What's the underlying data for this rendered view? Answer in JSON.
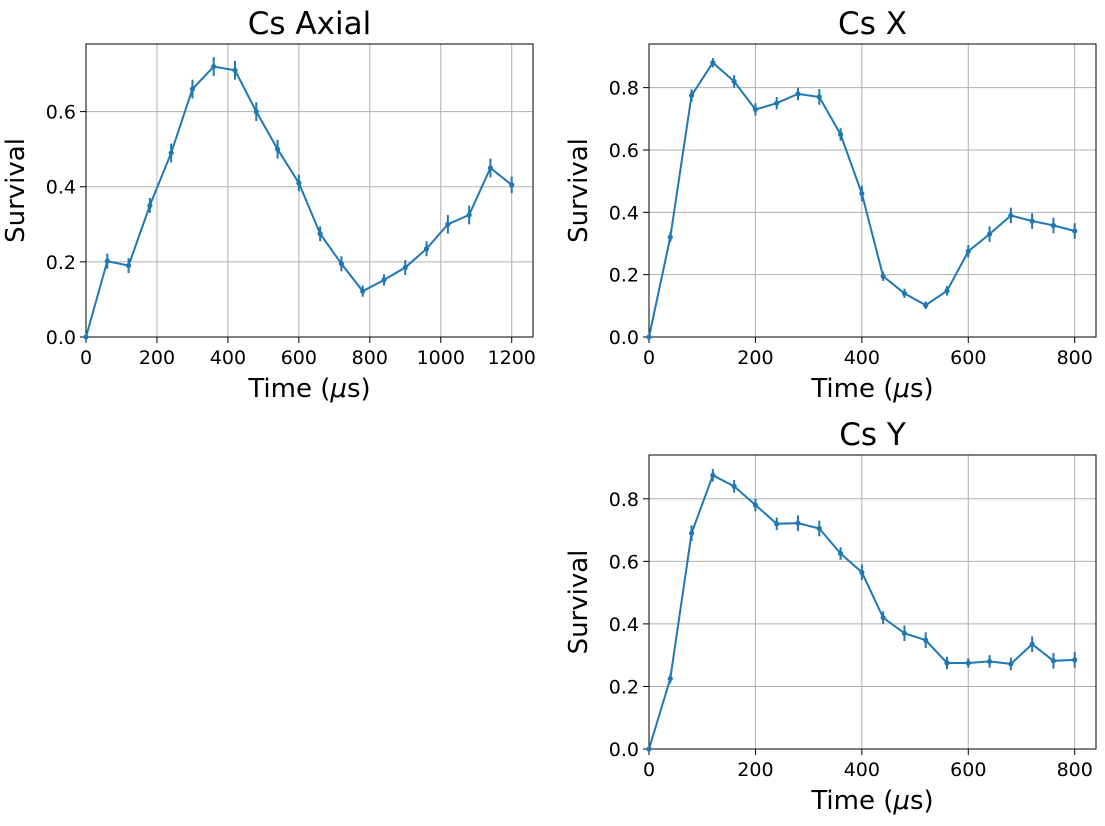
{
  "chart_data": [
    {
      "type": "line",
      "title": "Cs Axial",
      "xlabel": "Time ($\\mu$s)",
      "ylabel": "Survival",
      "xlim": [
        0,
        1260
      ],
      "ylim": [
        0,
        0.78
      ],
      "xticks": [
        0,
        200,
        400,
        600,
        800,
        1000,
        1200
      ],
      "yticks": [
        0.0,
        0.2,
        0.4,
        0.6
      ],
      "grid": true,
      "color": "#1f77b4",
      "x": [
        0,
        60,
        120,
        180,
        240,
        300,
        360,
        420,
        480,
        540,
        600,
        660,
        720,
        780,
        840,
        900,
        960,
        1020,
        1080,
        1140,
        1200
      ],
      "y": [
        0.0,
        0.202,
        0.19,
        0.35,
        0.49,
        0.66,
        0.72,
        0.71,
        0.6,
        0.5,
        0.41,
        0.275,
        0.195,
        0.122,
        0.152,
        0.185,
        0.235,
        0.3,
        0.325,
        0.45,
        0.405
      ],
      "err": [
        0,
        0.02,
        0.02,
        0.02,
        0.025,
        0.025,
        0.025,
        0.025,
        0.025,
        0.025,
        0.022,
        0.02,
        0.02,
        0.015,
        0.015,
        0.02,
        0.02,
        0.025,
        0.025,
        0.025,
        0.022
      ]
    },
    {
      "type": "line",
      "title": "Cs X",
      "xlabel": "Time ($\\mu$s)",
      "ylabel": "Survival",
      "xlim": [
        0,
        840
      ],
      "ylim": [
        0,
        0.94
      ],
      "xticks": [
        0,
        200,
        400,
        600,
        800
      ],
      "yticks": [
        0.0,
        0.2,
        0.4,
        0.6,
        0.8
      ],
      "grid": true,
      "color": "#1f77b4",
      "x": [
        0,
        40,
        80,
        120,
        160,
        200,
        240,
        280,
        320,
        360,
        400,
        440,
        480,
        520,
        560,
        600,
        640,
        680,
        720,
        760,
        800
      ],
      "y": [
        0.0,
        0.32,
        0.775,
        0.88,
        0.82,
        0.73,
        0.75,
        0.78,
        0.77,
        0.65,
        0.46,
        0.195,
        0.14,
        0.102,
        0.148,
        0.275,
        0.33,
        0.39,
        0.372,
        0.358,
        0.34
      ],
      "err": [
        0,
        0.015,
        0.02,
        0.015,
        0.02,
        0.02,
        0.02,
        0.02,
        0.025,
        0.02,
        0.025,
        0.015,
        0.015,
        0.012,
        0.015,
        0.02,
        0.025,
        0.025,
        0.025,
        0.025,
        0.025
      ]
    },
    {
      "type": "line",
      "title": "Cs Y",
      "xlabel": "Time ($\\mu$s)",
      "ylabel": "Survival",
      "xlim": [
        0,
        840
      ],
      "ylim": [
        0,
        0.94
      ],
      "xticks": [
        0,
        200,
        400,
        600,
        800
      ],
      "yticks": [
        0.0,
        0.2,
        0.4,
        0.6,
        0.8
      ],
      "grid": true,
      "color": "#1f77b4",
      "x": [
        0,
        40,
        80,
        120,
        160,
        200,
        240,
        280,
        320,
        360,
        400,
        440,
        480,
        520,
        560,
        600,
        640,
        680,
        720,
        760,
        800
      ],
      "y": [
        0.0,
        0.225,
        0.69,
        0.875,
        0.84,
        0.78,
        0.72,
        0.722,
        0.705,
        0.625,
        0.565,
        0.42,
        0.37,
        0.348,
        0.275,
        0.275,
        0.28,
        0.272,
        0.335,
        0.282,
        0.285
      ],
      "err": [
        0,
        0.015,
        0.025,
        0.02,
        0.02,
        0.02,
        0.02,
        0.025,
        0.025,
        0.02,
        0.025,
        0.02,
        0.025,
        0.025,
        0.02,
        0.015,
        0.02,
        0.02,
        0.025,
        0.025,
        0.025
      ]
    }
  ]
}
